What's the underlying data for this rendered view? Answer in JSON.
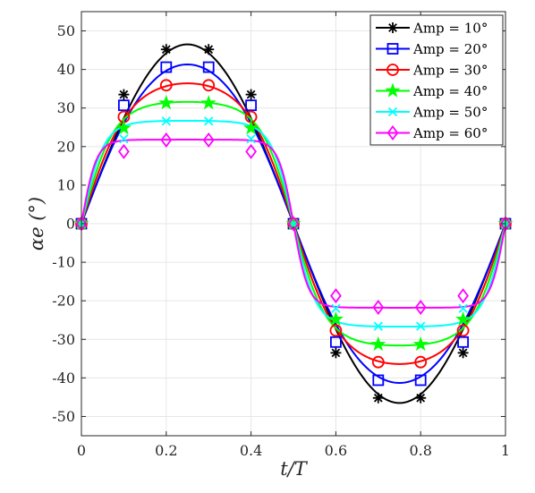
{
  "chart_data": {
    "type": "line",
    "title": "",
    "xlabel": "t/T",
    "ylabel": "αe (°)",
    "xlim": [
      0,
      1
    ],
    "ylim": [
      -55,
      55
    ],
    "xticks": [
      0,
      0.2,
      0.4,
      0.6,
      0.8,
      1
    ],
    "xtick_labels": [
      "0",
      "0.2",
      "0.4",
      "0.6",
      "0.8",
      "1"
    ],
    "yticks": [
      -50,
      -40,
      -30,
      -20,
      -10,
      0,
      10,
      20,
      30,
      40,
      50
    ],
    "ytick_labels": [
      "-50",
      "-40",
      "-30",
      "-20",
      "-10",
      "0",
      "10",
      "20",
      "30",
      "40",
      "50"
    ],
    "grid": true,
    "legend_position": "top-right",
    "series": [
      {
        "name": "Amp = 10°",
        "color": "#000000",
        "marker": "asterisk",
        "peak": 46.5,
        "flatness": 0,
        "x": [
          0,
          0.1,
          0.2,
          0.3,
          0.4,
          0.5,
          0.6,
          0.7,
          0.8,
          0.9,
          1
        ],
        "y": [
          0,
          33.5,
          45.2,
          45.2,
          33.5,
          0,
          -33.5,
          -45.2,
          -45.2,
          -33.5,
          0
        ]
      },
      {
        "name": "Amp = 20°",
        "color": "#0000ff",
        "marker": "square",
        "peak": 41.3,
        "flatness": 0.6,
        "x": [
          0,
          0.1,
          0.2,
          0.3,
          0.4,
          0.5,
          0.6,
          0.7,
          0.8,
          0.9,
          1
        ],
        "y": [
          0,
          30.7,
          40.6,
          40.6,
          30.7,
          0,
          -30.7,
          -40.6,
          -40.6,
          -30.7,
          0
        ]
      },
      {
        "name": "Amp = 30°",
        "color": "#ff0000",
        "marker": "circle",
        "peak": 36.4,
        "flatness": 1.3,
        "x": [
          0,
          0.1,
          0.2,
          0.3,
          0.4,
          0.5,
          0.6,
          0.7,
          0.8,
          0.9,
          1
        ],
        "y": [
          0,
          27.7,
          35.9,
          35.9,
          27.7,
          0,
          -27.7,
          -35.9,
          -35.9,
          -27.7,
          0
        ]
      },
      {
        "name": "Amp = 40°",
        "color": "#00ff00",
        "marker": "star",
        "peak": 31.6,
        "flatness": 2.0,
        "x": [
          0,
          0.1,
          0.2,
          0.3,
          0.4,
          0.5,
          0.6,
          0.7,
          0.8,
          0.9,
          1
        ],
        "y": [
          0,
          24.8,
          31.3,
          31.3,
          24.8,
          0,
          -24.8,
          -31.3,
          -31.3,
          -24.8,
          0
        ]
      },
      {
        "name": "Amp = 50°",
        "color": "#00ffff",
        "marker": "x",
        "peak": 26.7,
        "flatness": 3.0,
        "x": [
          0,
          0.1,
          0.2,
          0.3,
          0.4,
          0.5,
          0.6,
          0.7,
          0.8,
          0.9,
          1
        ],
        "y": [
          0,
          22.0,
          26.6,
          26.6,
          22.0,
          0,
          -22.0,
          -26.6,
          -26.6,
          -22.0,
          0
        ]
      },
      {
        "name": "Amp = 60°",
        "color": "#ff00ff",
        "marker": "diamond",
        "peak": 21.8,
        "flatness": 4.5,
        "x": [
          0,
          0.1,
          0.2,
          0.3,
          0.4,
          0.5,
          0.6,
          0.7,
          0.8,
          0.9,
          1
        ],
        "y": [
          0,
          18.7,
          21.7,
          21.7,
          18.7,
          0,
          -18.7,
          -21.7,
          -21.7,
          -18.7,
          0
        ]
      }
    ]
  }
}
